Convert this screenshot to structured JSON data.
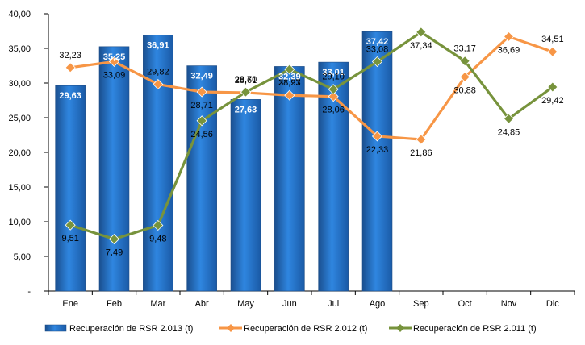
{
  "chart_data": {
    "type": "bar+line",
    "title": "",
    "xlabel": "",
    "ylabel": "",
    "ylim": [
      0,
      40
    ],
    "yticks": [
      "-",
      "5,00",
      "10,00",
      "15,00",
      "20,00",
      "25,00",
      "30,00",
      "35,00",
      "40,00"
    ],
    "categories": [
      "Ene",
      "Feb",
      "Mar",
      "Abr",
      "May",
      "Jun",
      "Jul",
      "Ago",
      "Sep",
      "Oct",
      "Nov",
      "Dic"
    ],
    "series": [
      {
        "name": "Recuperación de RSR 2.013 (t)",
        "kind": "bar",
        "color": "#1f6fc9",
        "values": [
          29.63,
          35.25,
          36.91,
          32.49,
          27.63,
          32.39,
          33.01,
          37.42,
          null,
          null,
          null,
          null
        ],
        "labels": [
          "29,63",
          "35,25",
          "36,91",
          "32,49",
          "27,63",
          "32,39",
          "33,01",
          "37,42",
          "",
          "",
          "",
          ""
        ]
      },
      {
        "name": "Recuperación de RSR 2.012 (t)",
        "kind": "line",
        "color": "#f79646",
        "values": [
          32.23,
          33.09,
          29.82,
          28.71,
          28.61,
          28.23,
          28.06,
          22.33,
          21.86,
          30.88,
          36.69,
          34.51
        ],
        "labels": [
          "32,23",
          "33,09",
          "29,82",
          "28,71",
          "28,61",
          "28,23",
          "28,06",
          "22,33",
          "21,86",
          "30,88",
          "36,69",
          "34,51"
        ]
      },
      {
        "name": "Recuperación de RSR 2.011 (t)",
        "kind": "line",
        "color": "#77933c",
        "values": [
          9.51,
          7.49,
          9.48,
          24.56,
          28.7,
          31.97,
          29.1,
          33.08,
          37.34,
          33.17,
          24.85,
          29.42
        ],
        "labels": [
          "9,51",
          "7,49",
          "9,48",
          "24,56",
          "28,70",
          "31,97",
          "29,10",
          "33,08",
          "37,34",
          "33,17",
          "24,85",
          "29,42"
        ]
      }
    ],
    "legend": "bottom",
    "grid": false
  }
}
